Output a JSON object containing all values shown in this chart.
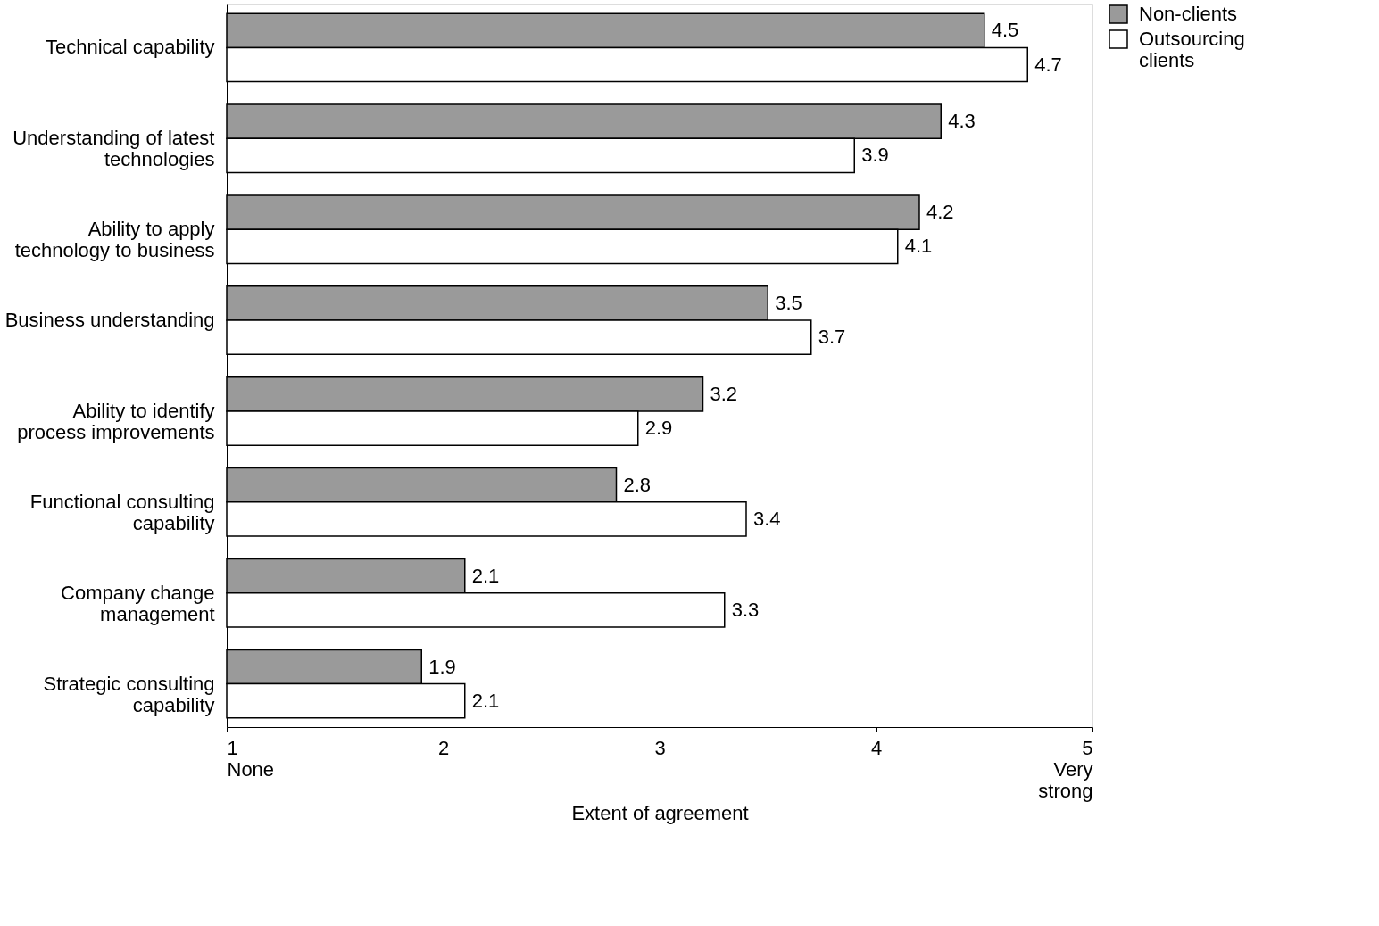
{
  "chart_data": {
    "type": "bar",
    "orientation": "horizontal",
    "xlabel": "Extent of agreement",
    "categories": [
      "Technical capability",
      "Understanding of latest\ntechnologies",
      "Ability to apply\ntechnology to business",
      "Business understanding",
      "Ability to identify\nprocess improvements",
      "Functional consulting\ncapability",
      "Company change\nmanagement",
      "Strategic consulting\ncapability"
    ],
    "series": [
      {
        "name": "Non-clients",
        "color": "#9a9a9a",
        "values": [
          4.5,
          4.3,
          4.2,
          3.5,
          3.2,
          2.8,
          2.1,
          1.9
        ]
      },
      {
        "name": "Outsourcing\nclients",
        "color": "#ffffff",
        "values": [
          4.7,
          3.9,
          4.1,
          3.7,
          2.9,
          3.4,
          3.3,
          2.1
        ]
      }
    ],
    "xlim": [
      1,
      5
    ],
    "xticks": [
      {
        "value": 1,
        "label": "1\nNone"
      },
      2,
      3,
      4,
      {
        "value": 5,
        "label": "5\nVery\nstrong"
      }
    ],
    "data_labels": true,
    "legend": "right",
    "grid": false
  }
}
